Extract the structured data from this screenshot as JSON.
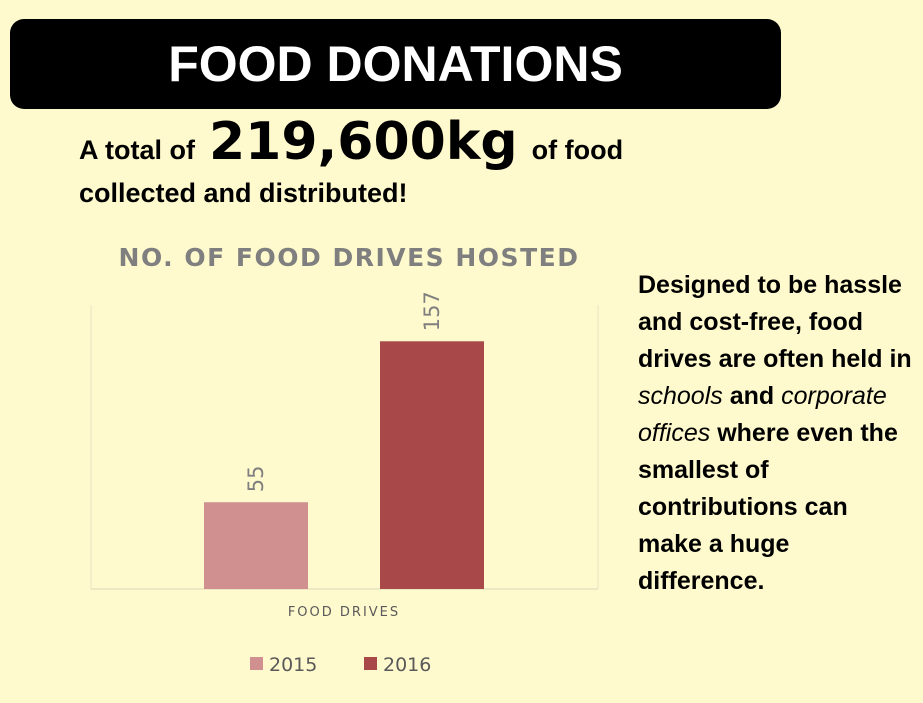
{
  "header": {
    "title": "FOOD DONATIONS"
  },
  "headline": {
    "prefix": "A total of",
    "amount": "219,600kg",
    "suffix": "of food",
    "line2": "collected and distributed!"
  },
  "side_text": {
    "part1": "Designed to be hassle and cost-free, food drives are often held in",
    "schools": "schools",
    "and": "and",
    "corporate": "corporate offices",
    "part2": "where even the smallest of contributions can make a huge difference."
  },
  "chart_data": {
    "type": "bar",
    "title": "NO. OF FOOD DRIVES HOSTED",
    "categories": [
      "FOOD DRIVES"
    ],
    "series": [
      {
        "name": "2015",
        "values": [
          55
        ],
        "color": "#d09090"
      },
      {
        "name": "2016",
        "values": [
          157
        ],
        "color": "#a84848"
      }
    ],
    "data_labels": [
      "55",
      "157"
    ],
    "xlabel": "FOOD DRIVES",
    "ylabel": "",
    "ylim": [
      0,
      180
    ],
    "grid": false,
    "legend": "bottom"
  },
  "colors": {
    "background": "#fffacd",
    "banner": "#000000",
    "chart_text": "#7f7f7f",
    "series_2015": "#d09090",
    "series_2016": "#a84848"
  }
}
